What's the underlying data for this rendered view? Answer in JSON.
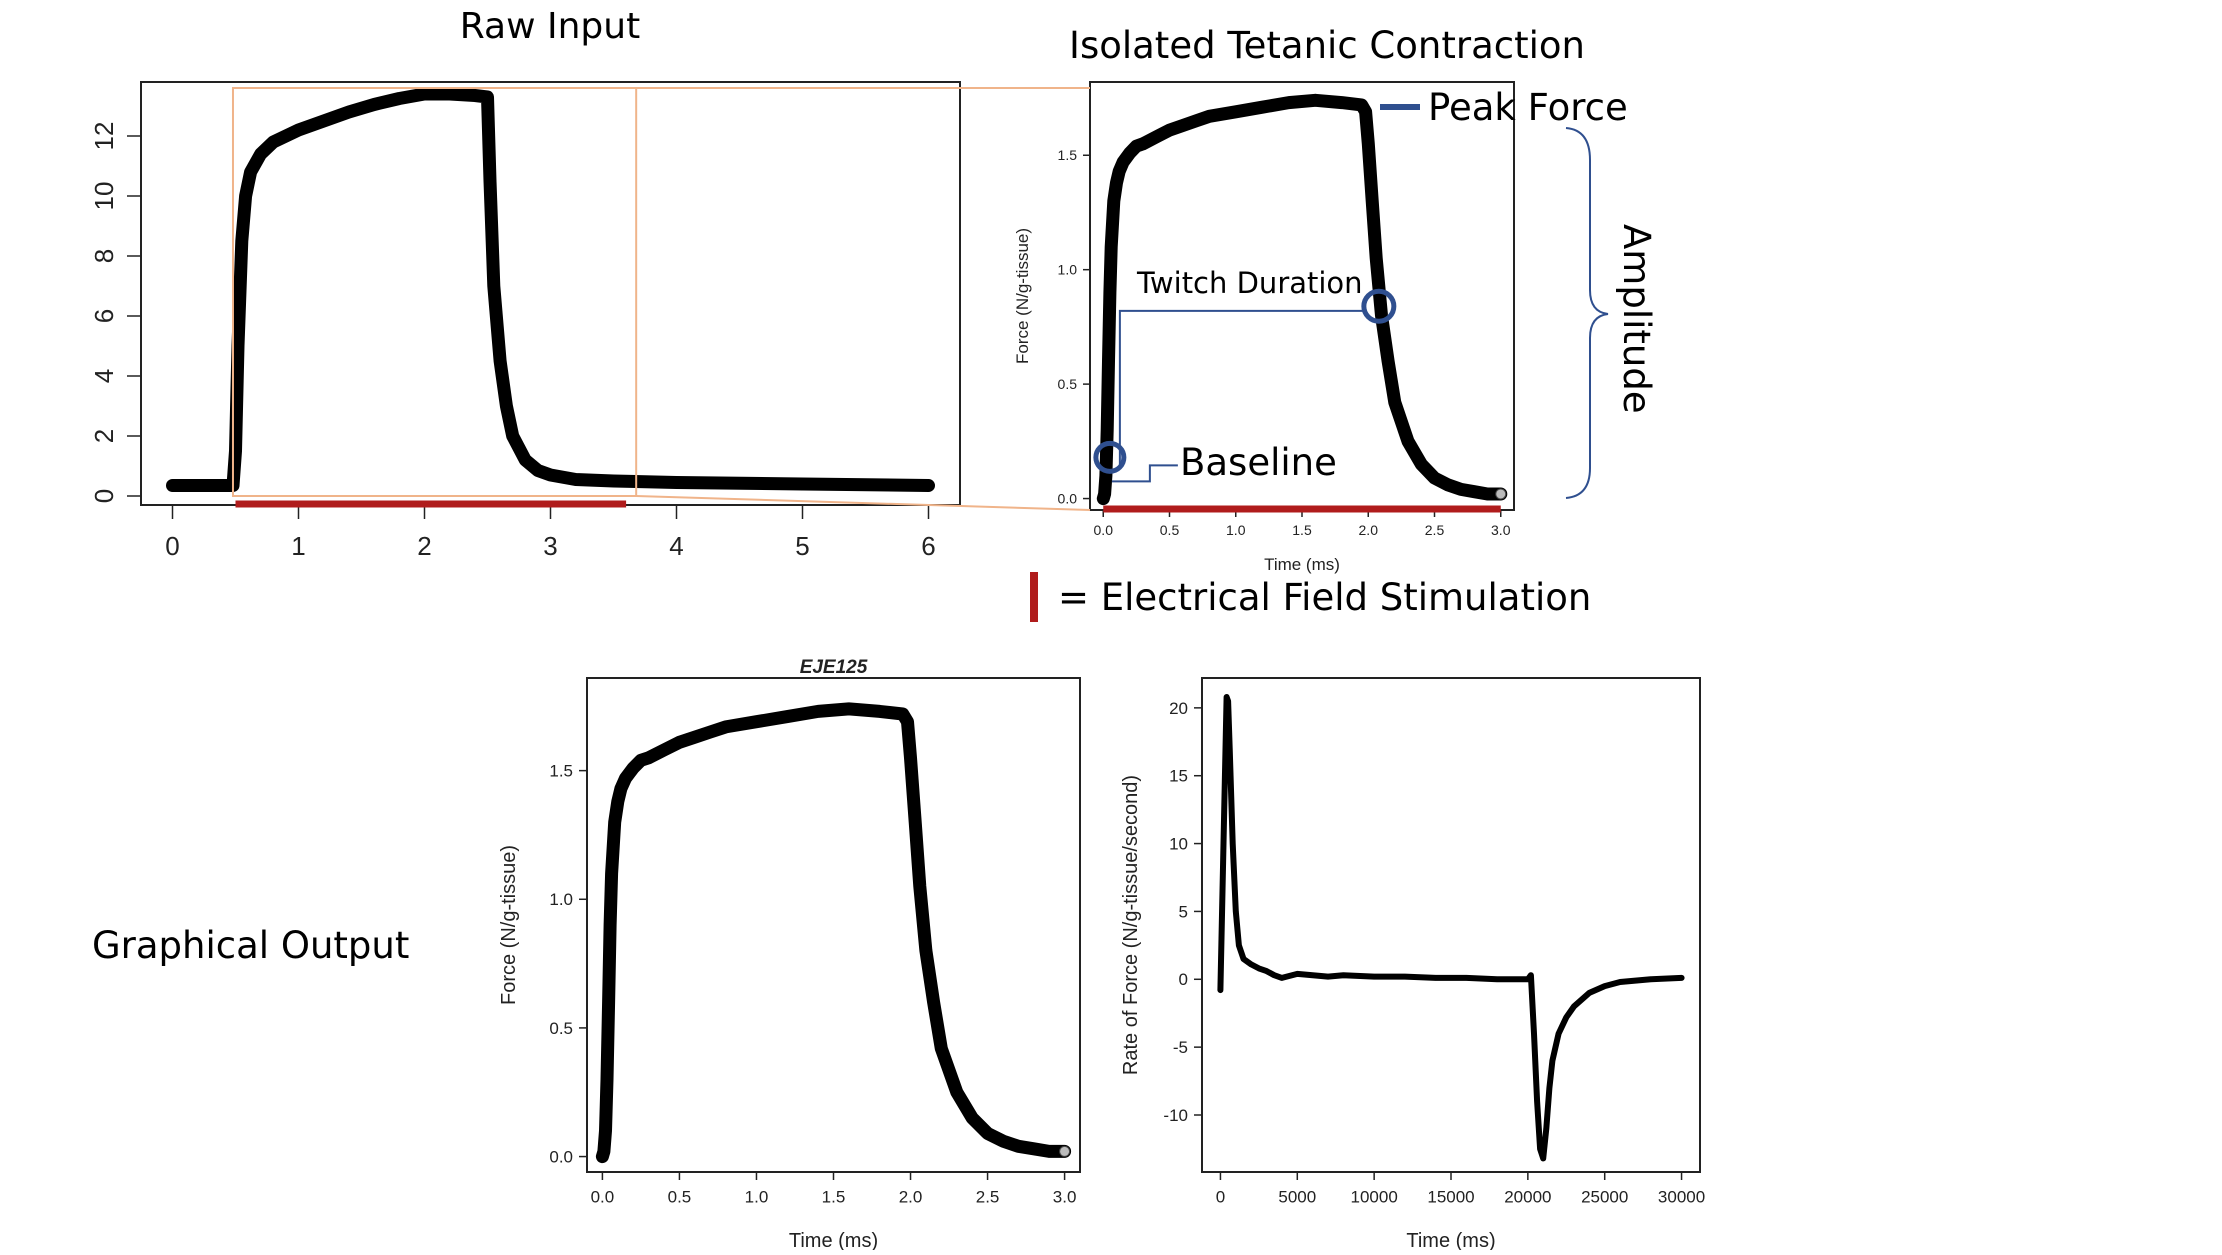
{
  "figure": {
    "raw_title": "Raw Input",
    "isolated_title": "Isolated Tetanic Contraction",
    "peak_force_label": "Peak Force",
    "amplitude_label": "Amplitude",
    "twitch_duration_label": "Twitch Duration",
    "baseline_label": "Baseline",
    "stim_legend_label": "= Electrical Field Stimulation",
    "graphical_output_label": "Graphical Output",
    "colors": {
      "trace": "#000000",
      "stimulation": "#b01c1c",
      "annotation": "#2f4f8f",
      "zoom_box": "#f0b48a"
    }
  },
  "chart_data": [
    {
      "id": "raw",
      "type": "line",
      "title": "",
      "xlabel": "",
      "ylabel": "",
      "xlim": [
        -0.25,
        6.25
      ],
      "ylim": [
        -0.3,
        13.8
      ],
      "x_ticks": [
        "0",
        "1",
        "2",
        "3",
        "4",
        "5",
        "6"
      ],
      "y_ticks": [
        "0",
        "2",
        "4",
        "6",
        "8",
        "10",
        "12"
      ],
      "series": [
        {
          "x": [
            0.0,
            0.2,
            0.4,
            0.48,
            0.5,
            0.52,
            0.55,
            0.58,
            0.62,
            0.7,
            0.8,
            0.9,
            1.0,
            1.2,
            1.4,
            1.6,
            1.8,
            2.0,
            2.2,
            2.4,
            2.5,
            2.52,
            2.55,
            2.6,
            2.65,
            2.7,
            2.8,
            2.9,
            3.0,
            3.2,
            3.5,
            4.0,
            5.0,
            6.0
          ],
          "y": [
            0.35,
            0.35,
            0.35,
            0.35,
            1.5,
            5.0,
            8.5,
            10.0,
            10.8,
            11.4,
            11.8,
            12.0,
            12.2,
            12.5,
            12.8,
            13.05,
            13.25,
            13.4,
            13.4,
            13.35,
            13.3,
            10.5,
            7.0,
            4.5,
            3.0,
            2.0,
            1.2,
            0.85,
            0.7,
            0.55,
            0.5,
            0.45,
            0.4,
            0.35
          ]
        }
      ],
      "stimulation": [
        0.5,
        3.6
      ],
      "zoom_window": [
        0.48,
        3.68,
        0.0,
        13.6
      ]
    },
    {
      "id": "isolated",
      "type": "line",
      "title": "",
      "xlabel": "Time (ms)",
      "ylabel": "Force (N/g-tissue)",
      "xlim": [
        -0.1,
        3.1
      ],
      "ylim": [
        -0.05,
        1.82
      ],
      "x_ticks": [
        "0.0",
        "0.5",
        "1.0",
        "1.5",
        "2.0",
        "2.5",
        "3.0"
      ],
      "y_ticks": [
        "0.0",
        "0.5",
        "1.0",
        "1.5"
      ],
      "series": [
        {
          "x": [
            0.0,
            0.01,
            0.02,
            0.03,
            0.04,
            0.05,
            0.06,
            0.08,
            0.1,
            0.12,
            0.15,
            0.2,
            0.25,
            0.3,
            0.4,
            0.5,
            0.6,
            0.7,
            0.8,
            1.0,
            1.2,
            1.4,
            1.6,
            1.8,
            1.95,
            1.98,
            2.0,
            2.03,
            2.06,
            2.1,
            2.15,
            2.2,
            2.3,
            2.4,
            2.5,
            2.6,
            2.7,
            2.8,
            2.9,
            3.0
          ],
          "y": [
            0.0,
            0.02,
            0.1,
            0.3,
            0.6,
            0.9,
            1.1,
            1.3,
            1.38,
            1.43,
            1.47,
            1.51,
            1.54,
            1.55,
            1.58,
            1.61,
            1.63,
            1.65,
            1.67,
            1.69,
            1.71,
            1.73,
            1.74,
            1.73,
            1.72,
            1.69,
            1.55,
            1.3,
            1.05,
            0.8,
            0.6,
            0.42,
            0.25,
            0.15,
            0.09,
            0.06,
            0.04,
            0.03,
            0.02,
            0.02
          ]
        }
      ],
      "stimulation": [
        0.0,
        3.0
      ],
      "baseline_marker": [
        0.05,
        0.18
      ],
      "twitch_marker": [
        2.08,
        0.84
      ],
      "twitch_line_y": 0.82
    },
    {
      "id": "force_output",
      "type": "line",
      "title": "EJE125",
      "xlabel": "Time (ms)",
      "ylabel": "Force (N/g-tissue)",
      "xlim": [
        -0.1,
        3.1
      ],
      "ylim": [
        -0.06,
        1.86
      ],
      "x_ticks": [
        "0.0",
        "0.5",
        "1.0",
        "1.5",
        "2.0",
        "2.5",
        "3.0"
      ],
      "y_ticks": [
        "0.0",
        "0.5",
        "1.0",
        "1.5"
      ],
      "series": [
        {
          "x": [
            0.0,
            0.01,
            0.02,
            0.03,
            0.04,
            0.05,
            0.06,
            0.08,
            0.1,
            0.12,
            0.15,
            0.2,
            0.25,
            0.3,
            0.4,
            0.5,
            0.6,
            0.7,
            0.8,
            1.0,
            1.2,
            1.4,
            1.6,
            1.8,
            1.95,
            1.98,
            2.0,
            2.03,
            2.06,
            2.1,
            2.15,
            2.2,
            2.3,
            2.4,
            2.5,
            2.6,
            2.7,
            2.8,
            2.9,
            3.0
          ],
          "y": [
            0.0,
            0.02,
            0.1,
            0.3,
            0.6,
            0.9,
            1.1,
            1.3,
            1.38,
            1.43,
            1.47,
            1.51,
            1.54,
            1.55,
            1.58,
            1.61,
            1.63,
            1.65,
            1.67,
            1.69,
            1.71,
            1.73,
            1.74,
            1.73,
            1.72,
            1.69,
            1.55,
            1.3,
            1.05,
            0.8,
            0.6,
            0.42,
            0.25,
            0.15,
            0.09,
            0.06,
            0.04,
            0.03,
            0.02,
            0.02
          ]
        }
      ]
    },
    {
      "id": "rate_output",
      "type": "line",
      "title": "",
      "xlabel": "Time (ms)",
      "ylabel": "Rate of Force (N/g-tissue/second)",
      "xlim": [
        -1200,
        31200
      ],
      "ylim": [
        -14.2,
        22.2
      ],
      "x_ticks": [
        "0",
        "5000",
        "10000",
        "15000",
        "20000",
        "25000",
        "30000"
      ],
      "y_ticks": [
        "-10",
        "-5",
        "0",
        "5",
        "10",
        "15",
        "20"
      ],
      "series": [
        {
          "x": [
            0,
            200,
            400,
            500,
            600,
            800,
            1000,
            1200,
            1500,
            2000,
            2500,
            3000,
            3500,
            4000,
            5000,
            6000,
            7000,
            8000,
            10000,
            12000,
            14000,
            16000,
            18000,
            20000,
            20200,
            20400,
            20600,
            20800,
            21000,
            21200,
            21400,
            21600,
            22000,
            22500,
            23000,
            24000,
            25000,
            26000,
            27000,
            28000,
            30000
          ],
          "y": [
            -0.8,
            10,
            20.8,
            20.5,
            17,
            10,
            5,
            2.5,
            1.5,
            1.1,
            0.8,
            0.6,
            0.3,
            0.1,
            0.4,
            0.3,
            0.2,
            0.3,
            0.2,
            0.2,
            0.1,
            0.1,
            0.0,
            0.0,
            0.3,
            -4,
            -9,
            -12.5,
            -13.2,
            -11,
            -8,
            -6,
            -4,
            -2.8,
            -2,
            -1,
            -0.5,
            -0.2,
            -0.1,
            0.0,
            0.1
          ]
        }
      ]
    }
  ]
}
